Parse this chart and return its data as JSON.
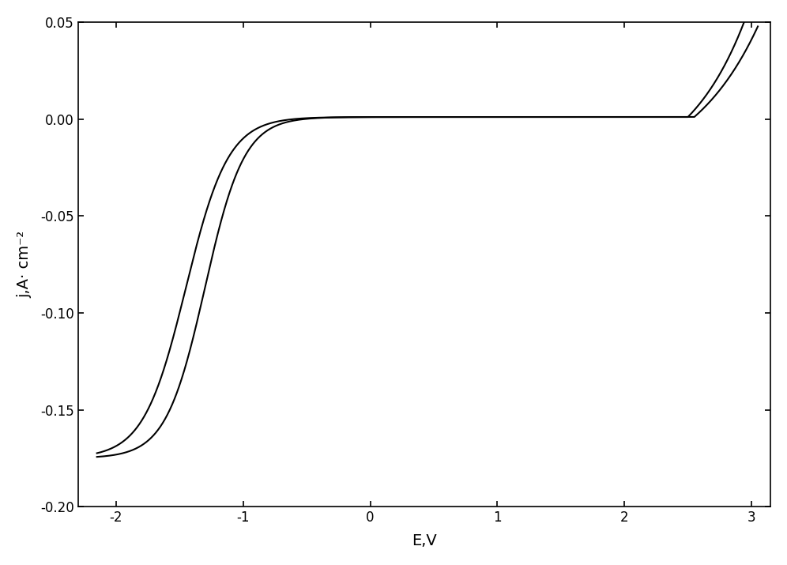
{
  "xlabel": "E,V",
  "ylabel": "j,A· cm⁻²",
  "xlim": [
    -2.3,
    3.15
  ],
  "ylim": [
    -0.2,
    0.05
  ],
  "xticks": [
    -2,
    -1,
    0,
    1,
    2,
    3
  ],
  "yticks": [
    0.05,
    0.0,
    -0.05,
    -0.1,
    -0.15,
    -0.2
  ],
  "line_color": "#000000",
  "line_width": 1.5,
  "background_color": "#ffffff",
  "figsize": [
    9.96,
    7.15
  ],
  "dpi": 100
}
